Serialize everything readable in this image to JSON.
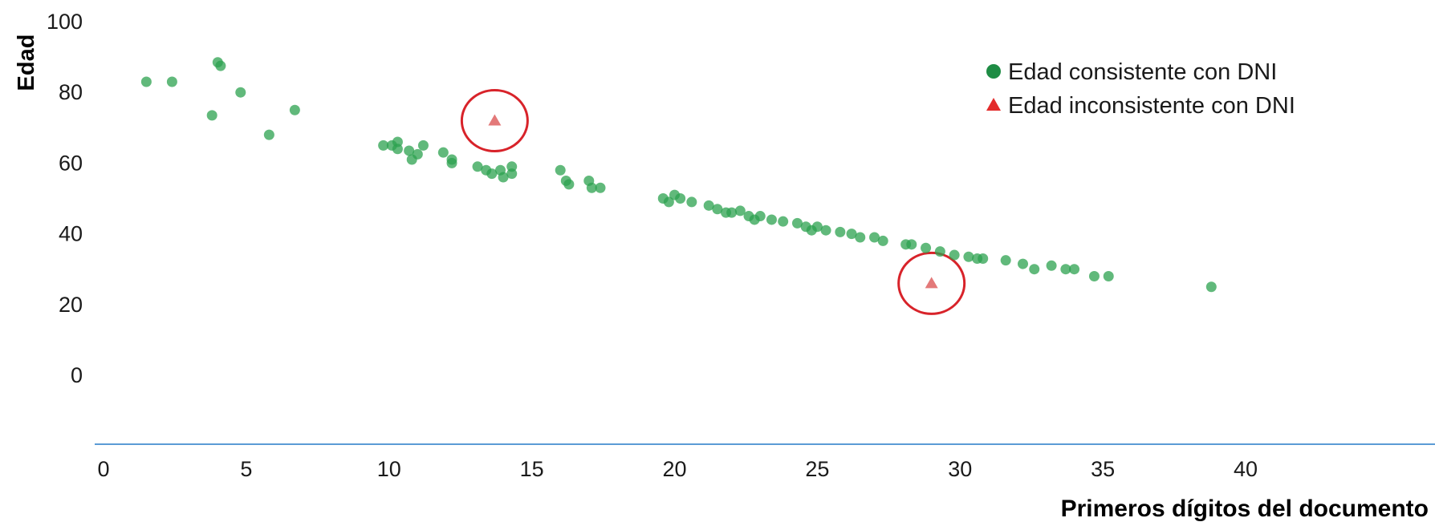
{
  "chart_data": {
    "type": "scatter",
    "title": "",
    "xlabel": "Primeros dígitos del documento",
    "ylabel": "Edad",
    "xlim": [
      0,
      40
    ],
    "ylim": [
      0,
      100
    ],
    "xticks": [
      0,
      5,
      10,
      15,
      20,
      25,
      30,
      35,
      40
    ],
    "yticks": [
      0,
      20,
      40,
      60,
      80,
      100
    ],
    "grid": false,
    "legend_position": "top-right",
    "colors": {
      "consistent": "#2ca24f",
      "inconsistent": "#e06a6a",
      "highlight_circle": "#d8232a",
      "x_axis_line": "#5b9bd5"
    },
    "series": [
      {
        "name": "Edad consistente con DNI",
        "marker": "circle",
        "points": [
          [
            1.5,
            83
          ],
          [
            2.4,
            83
          ],
          [
            4.0,
            88.5
          ],
          [
            4.1,
            87.5
          ],
          [
            4.8,
            80
          ],
          [
            3.8,
            73.5
          ],
          [
            5.8,
            68
          ],
          [
            6.7,
            75
          ],
          [
            9.8,
            65
          ],
          [
            10.1,
            65
          ],
          [
            10.3,
            66
          ],
          [
            10.3,
            64
          ],
          [
            10.7,
            63.5
          ],
          [
            11.0,
            62.5
          ],
          [
            11.2,
            65
          ],
          [
            10.8,
            61
          ],
          [
            11.9,
            63
          ],
          [
            12.2,
            61
          ],
          [
            12.2,
            60
          ],
          [
            13.1,
            59
          ],
          [
            13.4,
            58
          ],
          [
            13.6,
            57
          ],
          [
            13.9,
            58
          ],
          [
            14.0,
            56
          ],
          [
            14.3,
            59
          ],
          [
            14.3,
            57
          ],
          [
            16.0,
            58
          ],
          [
            16.2,
            55
          ],
          [
            16.3,
            54
          ],
          [
            17.0,
            55
          ],
          [
            17.1,
            53
          ],
          [
            17.4,
            53
          ],
          [
            19.6,
            50
          ],
          [
            19.8,
            49
          ],
          [
            20.0,
            51
          ],
          [
            20.2,
            50
          ],
          [
            20.6,
            49
          ],
          [
            21.2,
            48
          ],
          [
            21.5,
            47
          ],
          [
            21.8,
            46
          ],
          [
            22.0,
            46
          ],
          [
            22.3,
            46.5
          ],
          [
            22.6,
            45
          ],
          [
            22.8,
            44
          ],
          [
            23.0,
            45
          ],
          [
            23.4,
            44
          ],
          [
            23.8,
            43.5
          ],
          [
            24.3,
            43
          ],
          [
            24.6,
            42
          ],
          [
            24.8,
            41
          ],
          [
            25.0,
            42
          ],
          [
            25.3,
            41
          ],
          [
            25.8,
            40.5
          ],
          [
            26.2,
            40
          ],
          [
            26.5,
            39
          ],
          [
            27.0,
            39
          ],
          [
            27.3,
            38
          ],
          [
            28.1,
            37
          ],
          [
            28.3,
            37
          ],
          [
            28.8,
            36
          ],
          [
            29.3,
            35
          ],
          [
            29.8,
            34
          ],
          [
            30.3,
            33.5
          ],
          [
            30.6,
            33
          ],
          [
            30.8,
            33
          ],
          [
            31.6,
            32.5
          ],
          [
            32.2,
            31.5
          ],
          [
            32.6,
            30
          ],
          [
            33.2,
            31
          ],
          [
            33.7,
            30
          ],
          [
            34.0,
            30
          ],
          [
            34.7,
            28
          ],
          [
            35.2,
            28
          ],
          [
            38.8,
            25
          ]
        ]
      },
      {
        "name": "Edad inconsistente con DNI",
        "marker": "triangle",
        "points": [
          [
            13.7,
            72
          ],
          [
            29.0,
            26
          ]
        ]
      }
    ],
    "annotations": [
      {
        "type": "circle",
        "x": 13.7,
        "y": 72
      },
      {
        "type": "circle",
        "x": 29.0,
        "y": 26
      }
    ]
  }
}
